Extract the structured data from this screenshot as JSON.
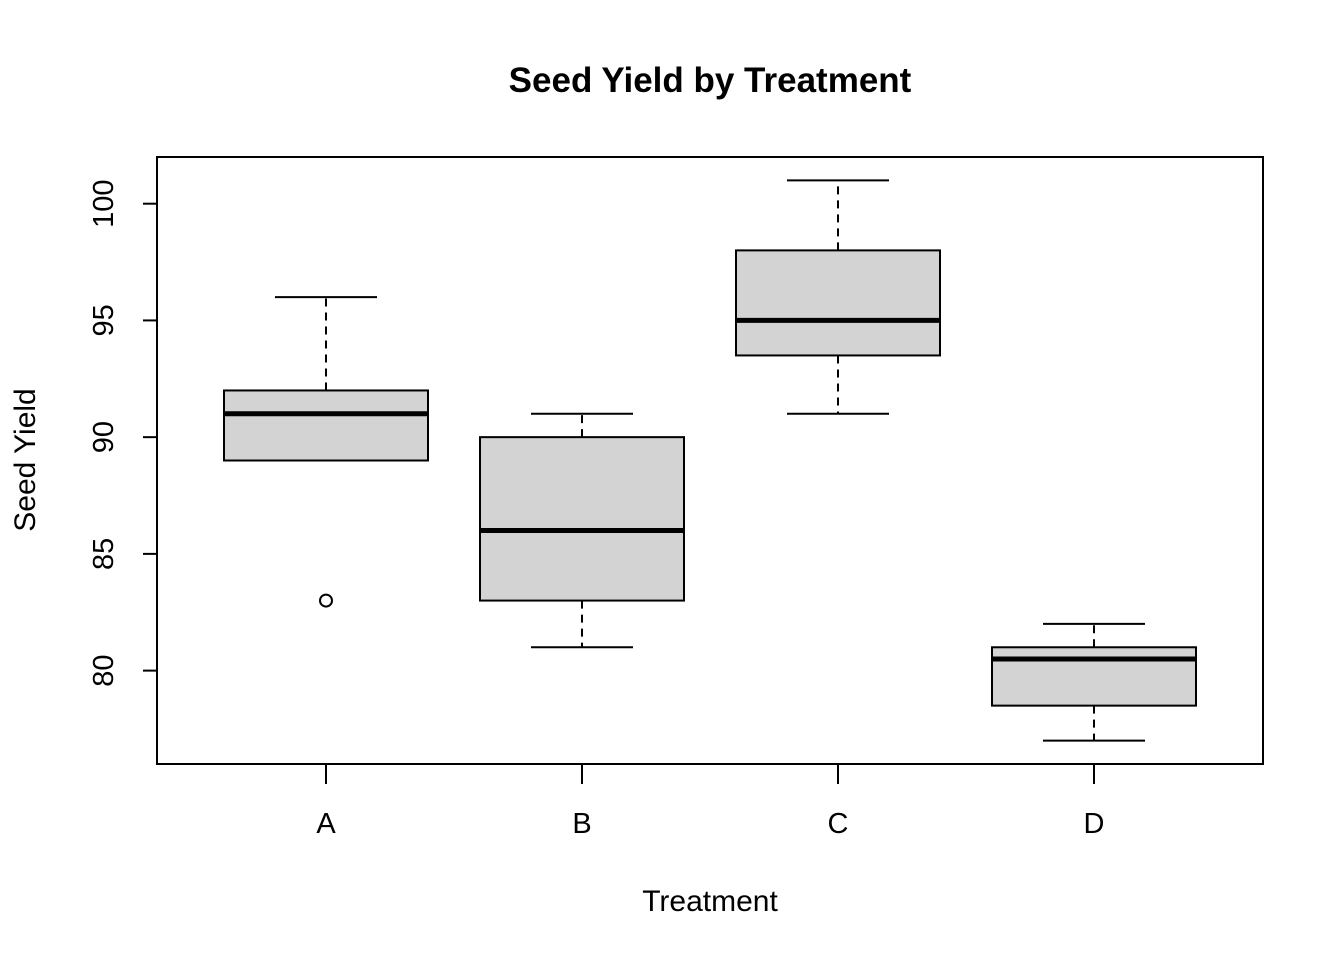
{
  "chart_data": {
    "type": "boxplot",
    "title": "Seed Yield by Treatment",
    "xlabel": "Treatment",
    "ylabel": "Seed Yield",
    "categories": [
      "A",
      "B",
      "C",
      "D"
    ],
    "ylim": [
      76.0,
      102.0
    ],
    "yticks": [
      80,
      85,
      90,
      95,
      100
    ],
    "box_fill": "#d3d3d3",
    "line_color": "#000000",
    "boxes": [
      {
        "category": "A",
        "whisker_low": 89,
        "q1": 89,
        "median": 91,
        "q3": 92,
        "whisker_high": 96,
        "outliers": [
          83
        ]
      },
      {
        "category": "B",
        "whisker_low": 81,
        "q1": 83,
        "median": 86,
        "q3": 90,
        "whisker_high": 91,
        "outliers": []
      },
      {
        "category": "C",
        "whisker_low": 91,
        "q1": 93.5,
        "median": 95,
        "q3": 98,
        "whisker_high": 101,
        "outliers": []
      },
      {
        "category": "D",
        "whisker_low": 77,
        "q1": 78.5,
        "median": 80.5,
        "q3": 81,
        "whisker_high": 82,
        "outliers": []
      }
    ]
  }
}
